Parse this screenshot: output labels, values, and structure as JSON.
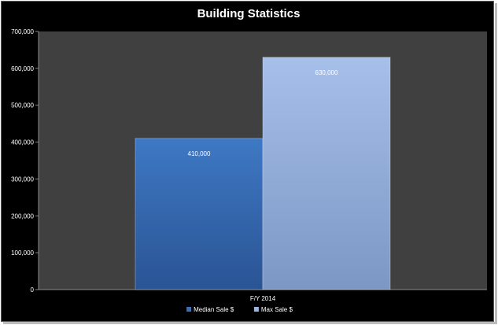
{
  "chart_data": {
    "type": "bar",
    "title": "Building Statistics",
    "categories": [
      "F/Y 2014"
    ],
    "series": [
      {
        "name": "Median Sale $",
        "values": [
          410000
        ],
        "value_labels": [
          "410,000"
        ],
        "color": "#3a6fb8"
      },
      {
        "name": "Max Sale $",
        "values": [
          630000
        ],
        "value_labels": [
          "630,000"
        ],
        "color": "#9ab6e3"
      }
    ],
    "ylim": [
      0,
      700000
    ],
    "yticks": [
      0,
      100000,
      200000,
      300000,
      400000,
      500000,
      600000,
      700000
    ],
    "ytick_labels": [
      "0",
      "100,000",
      "200,000",
      "300,000",
      "400,000",
      "500,000",
      "600,000",
      "700,000"
    ],
    "grid": false,
    "legend": "bottom",
    "plot_background": "#404040",
    "chart_background": "#000000"
  }
}
